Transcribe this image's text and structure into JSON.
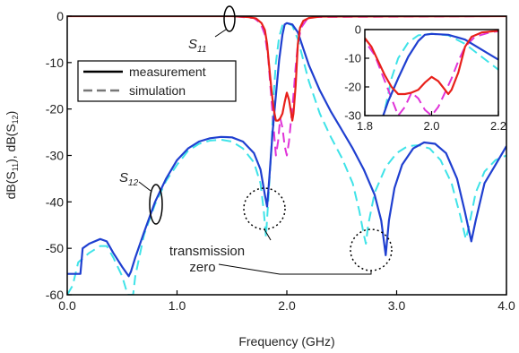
{
  "chart_data": [
    {
      "type": "line",
      "xlabel": "Frequency (GHz)",
      "ylabel": "dB(S11), dB(S12)",
      "xlim": [
        0.0,
        4.0
      ],
      "ylim": [
        -60,
        0
      ],
      "x_ticks": [
        "0.0",
        "1.0",
        "2.0",
        "3.0",
        "4.0"
      ],
      "y_ticks": [
        "0",
        "-10",
        "-20",
        "-30",
        "-40",
        "-50",
        "-60"
      ],
      "grid": false,
      "legend": {
        "placement": "upper-left",
        "entries": [
          {
            "label": "measurement",
            "style": "solid"
          },
          {
            "label": "simulation",
            "style": "dashed"
          }
        ]
      },
      "annotations": {
        "s11": "S11",
        "s12": "S12",
        "tz_line1": "transmission",
        "tz_line2": "zero"
      },
      "colors": {
        "s11_measurement": "#e8201a",
        "s11_simulation": "#e034d8",
        "s12_measurement": "#1f3fd0",
        "s12_simulation": "#3fe3e8"
      },
      "series": [
        {
          "kind": "s11_measurement",
          "points": [
            [
              0.0,
              0.0
            ],
            [
              1.5,
              0.0
            ],
            [
              1.65,
              -0.2
            ],
            [
              1.72,
              -0.5
            ],
            [
              1.77,
              -1.5
            ],
            [
              1.8,
              -3
            ],
            [
              1.82,
              -6
            ],
            [
              1.84,
              -11
            ],
            [
              1.86,
              -16
            ],
            [
              1.88,
              -20
            ],
            [
              1.9,
              -22.5
            ],
            [
              1.92,
              -22.5
            ],
            [
              1.94,
              -22
            ],
            [
              1.96,
              -21
            ],
            [
              1.98,
              -18.5
            ],
            [
              2.0,
              -16.5
            ],
            [
              2.02,
              -18
            ],
            [
              2.04,
              -21
            ],
            [
              2.05,
              -22.5
            ],
            [
              2.06,
              -21
            ],
            [
              2.08,
              -15
            ],
            [
              2.1,
              -6
            ],
            [
              2.12,
              -2.5
            ],
            [
              2.15,
              -1
            ],
            [
              2.2,
              -0.4
            ],
            [
              2.3,
              -0.1
            ],
            [
              4.0,
              0.0
            ]
          ]
        },
        {
          "kind": "s11_simulation",
          "points": [
            [
              0.0,
              0.0
            ],
            [
              1.5,
              0.0
            ],
            [
              1.7,
              -0.4
            ],
            [
              1.76,
              -1.5
            ],
            [
              1.8,
              -4
            ],
            [
              1.83,
              -9
            ],
            [
              1.85,
              -15
            ],
            [
              1.87,
              -21
            ],
            [
              1.89,
              -27
            ],
            [
              1.9,
              -30
            ],
            [
              1.92,
              -27
            ],
            [
              1.94,
              -22
            ],
            [
              1.96,
              -24
            ],
            [
              1.98,
              -28
            ],
            [
              2.0,
              -30
            ],
            [
              2.02,
              -27
            ],
            [
              2.04,
              -22
            ],
            [
              2.06,
              -17
            ],
            [
              2.08,
              -11
            ],
            [
              2.1,
              -6
            ],
            [
              2.13,
              -2.5
            ],
            [
              2.18,
              -0.8
            ],
            [
              2.25,
              -0.2
            ],
            [
              4.0,
              0.0
            ]
          ]
        },
        {
          "kind": "s12_measurement",
          "points": [
            [
              0.0,
              -55.5
            ],
            [
              0.12,
              -55.5
            ],
            [
              0.14,
              -50
            ],
            [
              0.2,
              -49
            ],
            [
              0.3,
              -48
            ],
            [
              0.36,
              -48.5
            ],
            [
              0.42,
              -51
            ],
            [
              0.5,
              -54
            ],
            [
              0.56,
              -56
            ],
            [
              0.58,
              -55
            ],
            [
              0.62,
              -52
            ],
            [
              0.7,
              -46.5
            ],
            [
              0.8,
              -40
            ],
            [
              0.9,
              -35
            ],
            [
              1.0,
              -31
            ],
            [
              1.1,
              -28.5
            ],
            [
              1.2,
              -27
            ],
            [
              1.3,
              -26.3
            ],
            [
              1.4,
              -26
            ],
            [
              1.5,
              -26.1
            ],
            [
              1.6,
              -27
            ],
            [
              1.7,
              -29.5
            ],
            [
              1.76,
              -33
            ],
            [
              1.8,
              -38.5
            ],
            [
              1.82,
              -41
            ],
            [
              1.84,
              -35
            ],
            [
              1.87,
              -25
            ],
            [
              1.9,
              -17
            ],
            [
              1.93,
              -9.5
            ],
            [
              1.96,
              -4
            ],
            [
              1.98,
              -1.8
            ],
            [
              2.0,
              -1.5
            ],
            [
              2.05,
              -1.8
            ],
            [
              2.1,
              -3.5
            ],
            [
              2.15,
              -7
            ],
            [
              2.2,
              -10.5
            ],
            [
              2.3,
              -16
            ],
            [
              2.4,
              -20.5
            ],
            [
              2.5,
              -24.5
            ],
            [
              2.6,
              -28.5
            ],
            [
              2.7,
              -33
            ],
            [
              2.8,
              -38.5
            ],
            [
              2.86,
              -44
            ],
            [
              2.9,
              -51.5
            ],
            [
              2.93,
              -44
            ],
            [
              2.98,
              -37
            ],
            [
              3.05,
              -32
            ],
            [
              3.15,
              -28.5
            ],
            [
              3.25,
              -27.2
            ],
            [
              3.35,
              -27.5
            ],
            [
              3.45,
              -29.5
            ],
            [
              3.55,
              -35
            ],
            [
              3.62,
              -42
            ],
            [
              3.68,
              -48.5
            ],
            [
              3.72,
              -44
            ],
            [
              3.8,
              -36
            ],
            [
              3.9,
              -32
            ],
            [
              4.0,
              -28
            ]
          ]
        },
        {
          "kind": "s12_simulation",
          "points": [
            [
              0.0,
              -60
            ],
            [
              0.05,
              -58
            ],
            [
              0.1,
              -53
            ],
            [
              0.2,
              -51
            ],
            [
              0.3,
              -49.5
            ],
            [
              0.36,
              -49.5
            ],
            [
              0.42,
              -52
            ],
            [
              0.5,
              -56
            ],
            [
              0.55,
              -60
            ],
            [
              0.6,
              -60
            ],
            [
              0.62,
              -56
            ],
            [
              0.7,
              -47
            ],
            [
              0.8,
              -40.5
            ],
            [
              0.9,
              -35.5
            ],
            [
              1.0,
              -32
            ],
            [
              1.1,
              -29
            ],
            [
              1.2,
              -27.5
            ],
            [
              1.3,
              -26.8
            ],
            [
              1.4,
              -26.6
            ],
            [
              1.5,
              -27
            ],
            [
              1.6,
              -28.5
            ],
            [
              1.7,
              -31.5
            ],
            [
              1.76,
              -36
            ],
            [
              1.79,
              -42
            ],
            [
              1.81,
              -47.5
            ],
            [
              1.83,
              -40
            ],
            [
              1.86,
              -28
            ],
            [
              1.88,
              -17
            ],
            [
              1.9,
              -10
            ],
            [
              1.93,
              -4.5
            ],
            [
              1.96,
              -2
            ],
            [
              2.0,
              -1.5
            ],
            [
              2.05,
              -2
            ],
            [
              2.1,
              -5
            ],
            [
              2.15,
              -9.5
            ],
            [
              2.2,
              -14
            ],
            [
              2.3,
              -21
            ],
            [
              2.4,
              -26
            ],
            [
              2.5,
              -30.5
            ],
            [
              2.6,
              -36
            ],
            [
              2.66,
              -42
            ],
            [
              2.7,
              -47
            ],
            [
              2.72,
              -49
            ],
            [
              2.74,
              -45
            ],
            [
              2.8,
              -38
            ],
            [
              2.9,
              -32.5
            ],
            [
              3.0,
              -29.5
            ],
            [
              3.1,
              -28
            ],
            [
              3.2,
              -27.8
            ],
            [
              3.3,
              -28.5
            ],
            [
              3.4,
              -31
            ],
            [
              3.5,
              -36
            ],
            [
              3.58,
              -43
            ],
            [
              3.63,
              -48
            ],
            [
              3.66,
              -45
            ],
            [
              3.72,
              -38
            ],
            [
              3.8,
              -33.5
            ],
            [
              3.9,
              -31
            ],
            [
              4.0,
              -30
            ]
          ]
        }
      ]
    },
    {
      "type": "line",
      "inset": true,
      "xlim": [
        1.8,
        2.2
      ],
      "ylim": [
        -30,
        0
      ],
      "x_ticks": [
        "1.8",
        "2.0",
        "2.2"
      ],
      "y_ticks": [
        "0",
        "-10",
        "-20",
        "-30"
      ],
      "series_ref": "same four traces, zoomed"
    }
  ]
}
